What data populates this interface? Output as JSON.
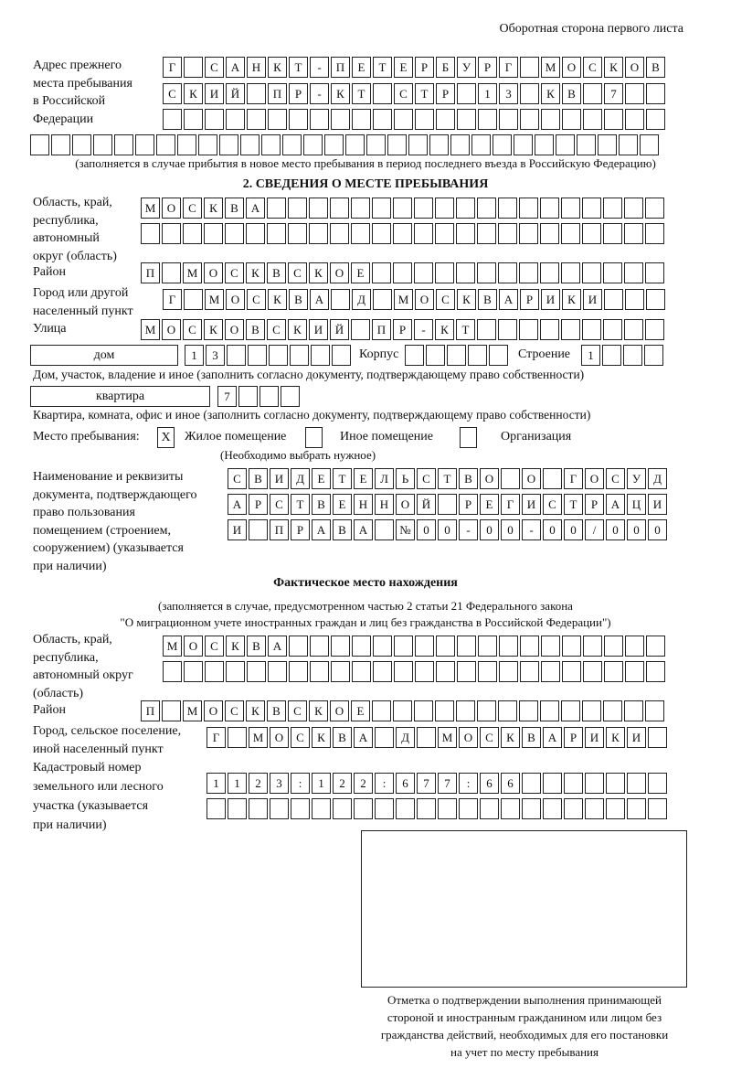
{
  "header": {
    "page_side": "Оборотная сторона первого листа"
  },
  "previous_address": {
    "label": "Адрес прежнего места пребывания в Российской Федерации",
    "label_lines": [
      "Адрес прежнего",
      "места пребывания",
      "в Российской",
      "Федерации"
    ],
    "rows": [
      "Г САНКТ-ПЕТЕРБУРГ МОСКОВ",
      "СКИЙ ПР-КТ СТР 13 КВ 7",
      "",
      ""
    ],
    "note": "(заполняется в случае прибытия в новое место пребывания в период последнего въезда в Российскую Федерацию)"
  },
  "section2": {
    "title": "2. СВЕДЕНИЯ О МЕСТЕ ПРЕБЫВАНИЯ",
    "region_label_lines": [
      "Область, край,",
      "республика,",
      "автономный",
      "округ (область)"
    ],
    "region_rows": [
      "МОСКВА",
      ""
    ],
    "district_label": "Район",
    "district": "П МОСКВСКОЕ",
    "city_label_lines": [
      "Город или другой",
      "населенный пункт"
    ],
    "city": "Г МОСКВА Д МОСКВАРИКИ",
    "street_label": "Улица",
    "street": "МОСКОВСКИЙ ПР-КТ",
    "house_type": "дом",
    "house_number": "13",
    "korpus_label": "Корпус",
    "korpus": "",
    "building_label": "Строение",
    "building": "1",
    "house_note": "Дом, участок, владение и иное (заполнить согласно документу, подтверждающему право собственности)",
    "apartment_type": "квартира",
    "apartment_number": "7",
    "apartment_note": "Квартира, комната, офис и иное (заполнить согласно документу, подтверждающему право собственности)",
    "stay_place_label": "Место пребывания:",
    "stay_options": [
      {
        "label": "Жилое помещение",
        "mark": "X"
      },
      {
        "label": "Иное помещение",
        "mark": ""
      },
      {
        "label": "Организация",
        "mark": ""
      }
    ],
    "stay_note": "(Необходимо выбрать нужное)",
    "document_label_lines": [
      "Наименование и реквизиты",
      "документа, подтверждающего",
      "право пользования",
      "помещением (строением,",
      "сооружением) (указывается",
      "при наличии)"
    ],
    "document_rows": [
      "СВИДЕТЕЛЬСТВО О ГОСУД",
      "АРСТВЕННОЙ РЕГИСТРАЦИ",
      "И ПРАВА №00-00-00/000"
    ]
  },
  "actual_location": {
    "title": "Фактическое место нахождения",
    "note_lines": [
      "(заполняется в случае, предусмотренном частью 2 статьи 21 Федерального закона",
      "\"О миграционном учете иностранных граждан и лиц без гражданства в Российской Федерации\")"
    ],
    "region_label_lines": [
      "Область, край,",
      "республика,",
      "автономный округ",
      "(область)"
    ],
    "region_rows": [
      "МОСКВА",
      ""
    ],
    "district_label": "Район",
    "district": "П МОСКВСКОЕ",
    "city_label_lines": [
      "Город, сельское поселение,",
      "иной населенный пункт"
    ],
    "city": "Г МОСКВА Д МОСКВАРИКИ",
    "cadastral_label_lines": [
      "Кадастровый номер",
      "земельного или лесного",
      "участка (указывается",
      "при наличии)"
    ],
    "cadastral_rows": [
      "1123:122:677:66",
      ""
    ]
  },
  "confirmation": {
    "stamp_box": "",
    "caption_lines": [
      "Отметка о подтверждении выполнения принимающей",
      "стороной и иностранным гражданином или лицом без",
      "гражданства действий, необходимых для его постановки",
      "на учет по месту пребывания"
    ]
  }
}
